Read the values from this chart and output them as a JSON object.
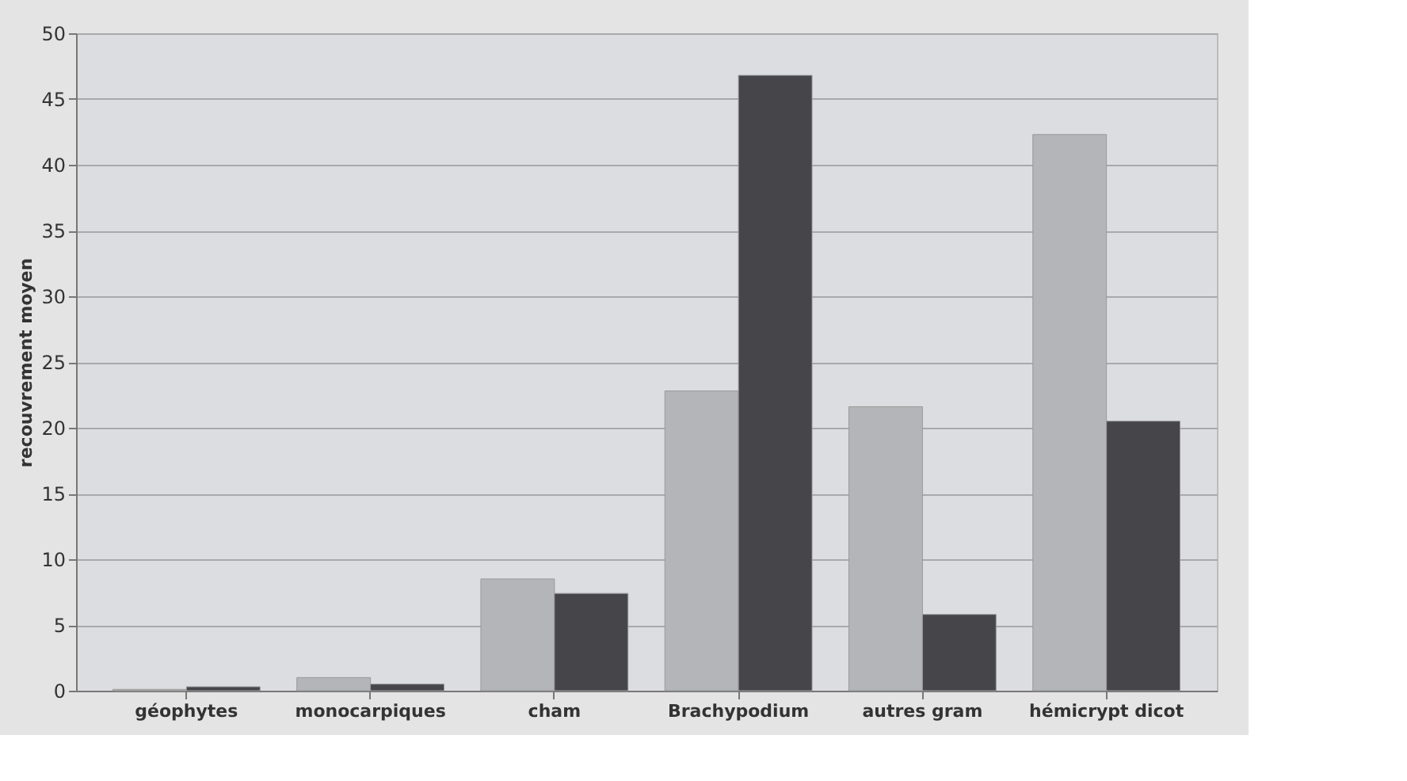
{
  "chart_data": {
    "type": "bar",
    "ylabel": "recouvrement   moyen",
    "categories": [
      "géophytes",
      "monocarpiques",
      "cham",
      "Brachypodium",
      "autres   gram",
      "hémicrypt dicot"
    ],
    "series": [
      {
        "color": "#b3b5b8",
        "values": [
          0.1,
          1.0,
          8.5,
          22.8,
          21.6,
          42.3
        ]
      },
      {
        "color": "#46454a",
        "values": [
          0.3,
          0.5,
          7.4,
          46.8,
          5.8,
          20.5
        ]
      }
    ],
    "ylim": [
      0,
      50
    ],
    "yticks": [
      0,
      5,
      10,
      15,
      20,
      25,
      30,
      35,
      40,
      45,
      50
    ],
    "grid": "y",
    "legend": false
  }
}
